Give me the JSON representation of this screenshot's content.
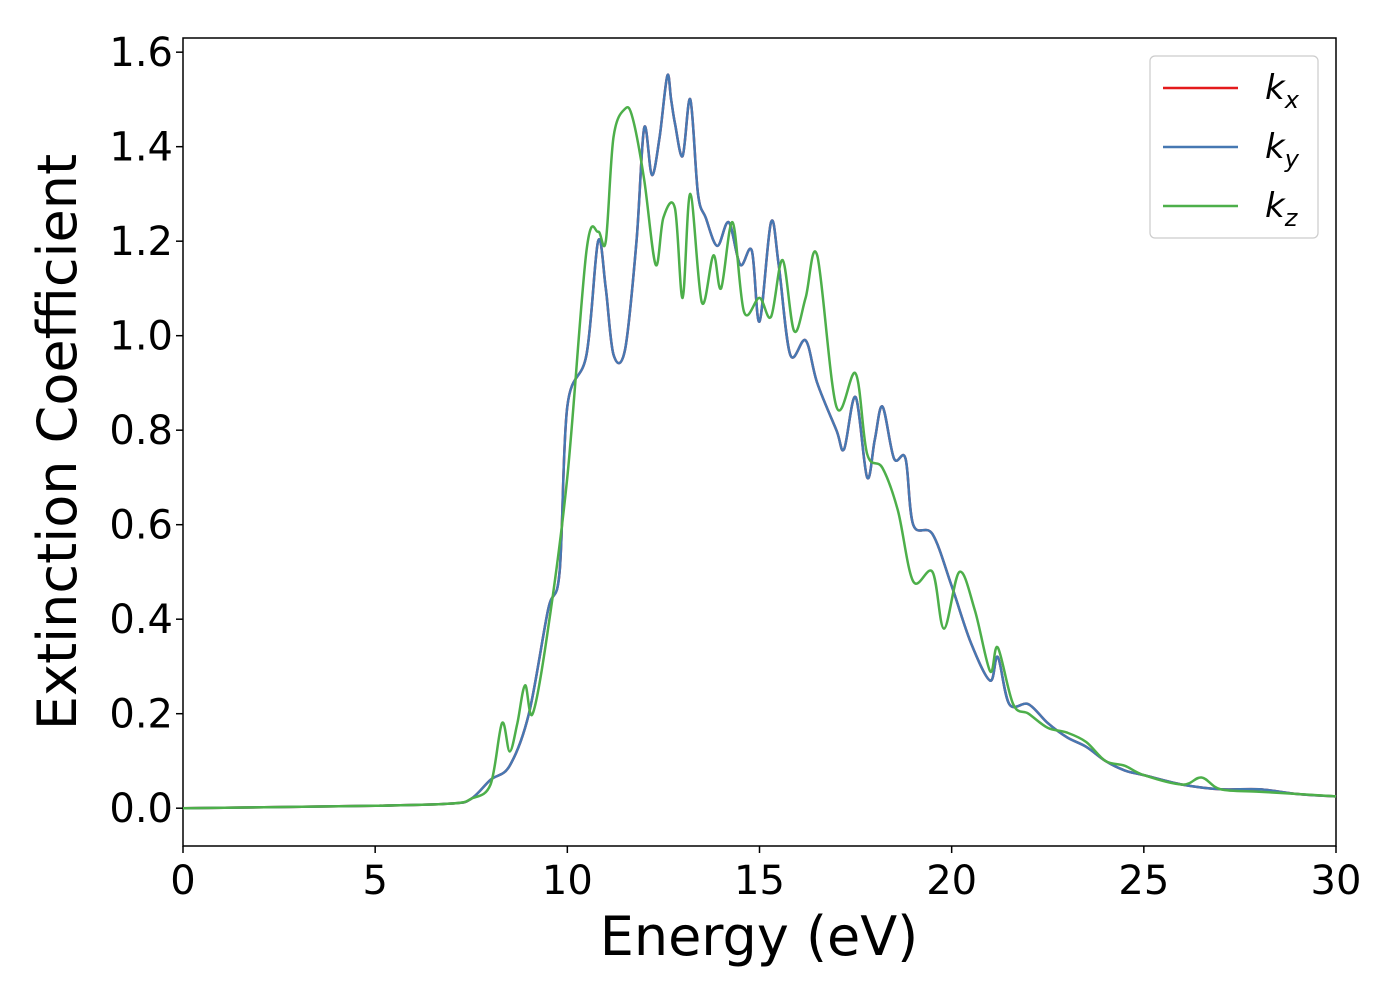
{
  "chart_data": {
    "type": "line",
    "title": "",
    "xlabel": "Energy (eV)",
    "ylabel": "Extinction Coefficient",
    "xlim": [
      0,
      30
    ],
    "ylim": [
      -0.08,
      1.63
    ],
    "xticks": [
      0,
      5,
      10,
      15,
      20,
      25,
      30
    ],
    "xtick_labels": [
      "0",
      "5",
      "10",
      "15",
      "20",
      "25",
      "30"
    ],
    "yticks": [
      0.0,
      0.2,
      0.4,
      0.6,
      0.8,
      1.0,
      1.2,
      1.4,
      1.6
    ],
    "ytick_labels": [
      "0.0",
      "0.2",
      "0.4",
      "0.6",
      "0.8",
      "1.0",
      "1.2",
      "1.4",
      "1.6"
    ],
    "grid": false,
    "legend_position": "top-right",
    "series": [
      {
        "name": "k_x",
        "label_main": "k",
        "label_sub": "x",
        "color": "#e41a1c",
        "x": [
          0,
          5,
          7,
          7.5,
          8,
          8.5,
          9,
          9.5,
          9.8,
          10,
          10.5,
          10.8,
          11,
          11.2,
          11.5,
          11.8,
          12,
          12.2,
          12.4,
          12.6,
          12.7,
          12.8,
          13,
          13.2,
          13.4,
          13.6,
          13.9,
          14.2,
          14.5,
          14.8,
          15.0,
          15.3,
          15.5,
          15.8,
          16.2,
          16.5,
          17,
          17.2,
          17.5,
          17.8,
          18.0,
          18.2,
          18.5,
          18.8,
          19,
          19.5,
          20,
          20.5,
          21,
          21.2,
          21.5,
          22,
          22.5,
          23,
          23.5,
          24,
          24.5,
          25,
          26,
          27,
          28,
          29,
          30
        ],
        "y": [
          0.0,
          0.005,
          0.01,
          0.02,
          0.06,
          0.09,
          0.2,
          0.42,
          0.5,
          0.85,
          0.96,
          1.2,
          1.1,
          0.96,
          0.97,
          1.2,
          1.44,
          1.34,
          1.42,
          1.55,
          1.5,
          1.45,
          1.38,
          1.5,
          1.3,
          1.25,
          1.19,
          1.24,
          1.15,
          1.18,
          1.03,
          1.24,
          1.15,
          0.96,
          0.99,
          0.9,
          0.8,
          0.76,
          0.87,
          0.7,
          0.78,
          0.85,
          0.74,
          0.74,
          0.6,
          0.58,
          0.47,
          0.35,
          0.27,
          0.32,
          0.22,
          0.22,
          0.18,
          0.15,
          0.13,
          0.1,
          0.08,
          0.07,
          0.05,
          0.04,
          0.04,
          0.03,
          0.025
        ]
      },
      {
        "name": "k_y",
        "label_main": "k",
        "label_sub": "y",
        "color": "#4678b2",
        "x": [
          0,
          5,
          7,
          7.5,
          8,
          8.5,
          9,
          9.5,
          9.8,
          10,
          10.5,
          10.8,
          11,
          11.2,
          11.5,
          11.8,
          12,
          12.2,
          12.4,
          12.6,
          12.7,
          12.8,
          13,
          13.2,
          13.4,
          13.6,
          13.9,
          14.2,
          14.5,
          14.8,
          15.0,
          15.3,
          15.5,
          15.8,
          16.2,
          16.5,
          17,
          17.2,
          17.5,
          17.8,
          18.0,
          18.2,
          18.5,
          18.8,
          19,
          19.5,
          20,
          20.5,
          21,
          21.2,
          21.5,
          22,
          22.5,
          23,
          23.5,
          24,
          24.5,
          25,
          26,
          27,
          28,
          29,
          30
        ],
        "y": [
          0.0,
          0.005,
          0.01,
          0.02,
          0.06,
          0.09,
          0.2,
          0.42,
          0.5,
          0.85,
          0.96,
          1.2,
          1.1,
          0.96,
          0.97,
          1.2,
          1.44,
          1.34,
          1.42,
          1.55,
          1.5,
          1.45,
          1.38,
          1.5,
          1.3,
          1.25,
          1.19,
          1.24,
          1.15,
          1.18,
          1.03,
          1.24,
          1.15,
          0.96,
          0.99,
          0.9,
          0.8,
          0.76,
          0.87,
          0.7,
          0.78,
          0.85,
          0.74,
          0.74,
          0.6,
          0.58,
          0.47,
          0.35,
          0.27,
          0.32,
          0.22,
          0.22,
          0.18,
          0.15,
          0.13,
          0.1,
          0.08,
          0.07,
          0.05,
          0.04,
          0.04,
          0.03,
          0.025
        ]
      },
      {
        "name": "k_z",
        "label_main": "k",
        "label_sub": "z",
        "color": "#4daf4a",
        "x": [
          0,
          5,
          7,
          7.5,
          8,
          8.3,
          8.5,
          8.7,
          8.9,
          9.1,
          9.5,
          10,
          10.5,
          10.8,
          11,
          11.2,
          11.5,
          11.7,
          12,
          12.3,
          12.5,
          12.8,
          13,
          13.2,
          13.5,
          13.8,
          14,
          14.3,
          14.6,
          15,
          15.3,
          15.6,
          15.9,
          16.2,
          16.5,
          17,
          17.5,
          17.8,
          18.2,
          18.6,
          19,
          19.5,
          19.8,
          20.2,
          20.6,
          21,
          21.2,
          21.6,
          22,
          22.5,
          23,
          23.5,
          24,
          24.5,
          25,
          26,
          26.5,
          27,
          28,
          29,
          30
        ],
        "y": [
          0.0,
          0.005,
          0.01,
          0.02,
          0.05,
          0.18,
          0.12,
          0.18,
          0.26,
          0.2,
          0.38,
          0.7,
          1.18,
          1.22,
          1.2,
          1.42,
          1.48,
          1.46,
          1.33,
          1.15,
          1.25,
          1.27,
          1.08,
          1.3,
          1.07,
          1.17,
          1.1,
          1.24,
          1.05,
          1.08,
          1.04,
          1.16,
          1.01,
          1.08,
          1.17,
          0.85,
          0.92,
          0.75,
          0.72,
          0.63,
          0.48,
          0.5,
          0.38,
          0.5,
          0.42,
          0.29,
          0.34,
          0.22,
          0.2,
          0.17,
          0.16,
          0.14,
          0.1,
          0.09,
          0.07,
          0.05,
          0.065,
          0.04,
          0.035,
          0.03,
          0.025
        ]
      }
    ]
  }
}
